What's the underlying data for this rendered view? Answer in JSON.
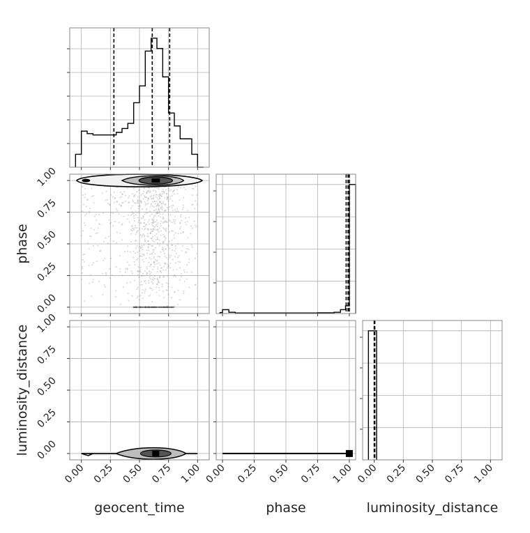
{
  "chart_data": {
    "type": "corner",
    "parameters": [
      "geocent_time",
      "phase",
      "luminosity_distance"
    ],
    "tick_labels": [
      "0.00",
      "0.25",
      "0.50",
      "0.75",
      "1.00"
    ],
    "grid": true,
    "colors": {
      "line": "#000000",
      "grid": "#b0b0b0",
      "scatter": "#9a9a9a",
      "frame": "#888888"
    },
    "subplots": [
      {
        "id": "hist-geocent_time",
        "type": "histogram",
        "param": "geocent_time",
        "xlim": [
          -0.1,
          1.1
        ],
        "bins": [
          {
            "x0": -0.05,
            "x1": 0.0,
            "y": 0.1
          },
          {
            "x0": 0.0,
            "x1": 0.05,
            "y": 0.28
          },
          {
            "x0": 0.05,
            "x1": 0.1,
            "y": 0.26
          },
          {
            "x0": 0.1,
            "x1": 0.15,
            "y": 0.25
          },
          {
            "x0": 0.15,
            "x1": 0.2,
            "y": 0.25
          },
          {
            "x0": 0.2,
            "x1": 0.25,
            "y": 0.25
          },
          {
            "x0": 0.25,
            "x1": 0.3,
            "y": 0.25
          },
          {
            "x0": 0.3,
            "x1": 0.35,
            "y": 0.27
          },
          {
            "x0": 0.35,
            "x1": 0.4,
            "y": 0.3
          },
          {
            "x0": 0.4,
            "x1": 0.45,
            "y": 0.34
          },
          {
            "x0": 0.45,
            "x1": 0.5,
            "y": 0.5
          },
          {
            "x0": 0.5,
            "x1": 0.55,
            "y": 0.63
          },
          {
            "x0": 0.55,
            "x1": 0.6,
            "y": 0.9
          },
          {
            "x0": 0.6,
            "x1": 0.65,
            "y": 1.0
          },
          {
            "x0": 0.65,
            "x1": 0.7,
            "y": 0.92
          },
          {
            "x0": 0.7,
            "x1": 0.75,
            "y": 0.7
          },
          {
            "x0": 0.75,
            "x1": 0.8,
            "y": 0.42
          },
          {
            "x0": 0.8,
            "x1": 0.85,
            "y": 0.32
          },
          {
            "x0": 0.85,
            "x1": 0.9,
            "y": 0.22
          },
          {
            "x0": 0.9,
            "x1": 0.95,
            "y": 0.22
          },
          {
            "x0": 0.95,
            "x1": 1.0,
            "y": 0.1
          },
          {
            "x0": 1.0,
            "x1": 1.05,
            "y": 0.0
          }
        ],
        "quantiles": [
          0.28,
          0.61,
          0.76
        ]
      },
      {
        "id": "hist-phase",
        "type": "histogram",
        "param": "phase",
        "xlim": [
          -0.05,
          1.05
        ],
        "bins": [
          {
            "x0": -0.02,
            "x1": 0.0,
            "y": 0.008
          },
          {
            "x0": 0.0,
            "x1": 0.05,
            "y": 0.03
          },
          {
            "x0": 0.05,
            "x1": 0.1,
            "y": 0.01
          },
          {
            "x0": 0.1,
            "x1": 0.75,
            "y": 0.004
          },
          {
            "x0": 0.75,
            "x1": 0.88,
            "y": 0.006
          },
          {
            "x0": 0.88,
            "x1": 0.93,
            "y": 0.01
          },
          {
            "x0": 0.93,
            "x1": 0.97,
            "y": 0.03
          },
          {
            "x0": 0.97,
            "x1": 1.0,
            "y": 0.06
          },
          {
            "x0": 1.0,
            "x1": 1.05,
            "y": 1.0
          }
        ],
        "quantiles": [
          0.975,
          0.99,
          1.0
        ]
      },
      {
        "id": "hist-luminosity_distance",
        "type": "histogram",
        "param": "luminosity_distance",
        "xlim": [
          -0.1,
          1.1
        ],
        "bins": [
          {
            "x0": -0.05,
            "x1": 0.0,
            "y": 1.0
          },
          {
            "x0": 0.0,
            "x1": 0.02,
            "y": 1.0
          }
        ],
        "quantiles": [
          0.0,
          0.0,
          0.005
        ]
      },
      {
        "id": "2d-geocent_time-phase",
        "type": "scatter-contour",
        "xparam": "geocent_time",
        "yparam": "phase",
        "xlim": [
          -0.1,
          1.1
        ],
        "ylim": [
          -0.05,
          1.05
        ],
        "dense_band_y": 1.0,
        "dense_center_x": 0.62,
        "bottom_band_y": 0.0
      },
      {
        "id": "2d-geocent_time-luminosity_distance",
        "type": "scatter-contour",
        "xparam": "geocent_time",
        "yparam": "luminosity_distance",
        "xlim": [
          -0.1,
          1.1
        ],
        "ylim": [
          -0.05,
          1.05
        ],
        "dense_band_y": 0.0,
        "dense_center_x": 0.62
      },
      {
        "id": "2d-phase-luminosity_distance",
        "type": "scatter-contour",
        "xparam": "phase",
        "yparam": "luminosity_distance",
        "xlim": [
          -0.05,
          1.05
        ],
        "ylim": [
          -0.05,
          1.05
        ],
        "dense_band_y": 0.0,
        "dense_end_x": 1.0
      }
    ]
  }
}
